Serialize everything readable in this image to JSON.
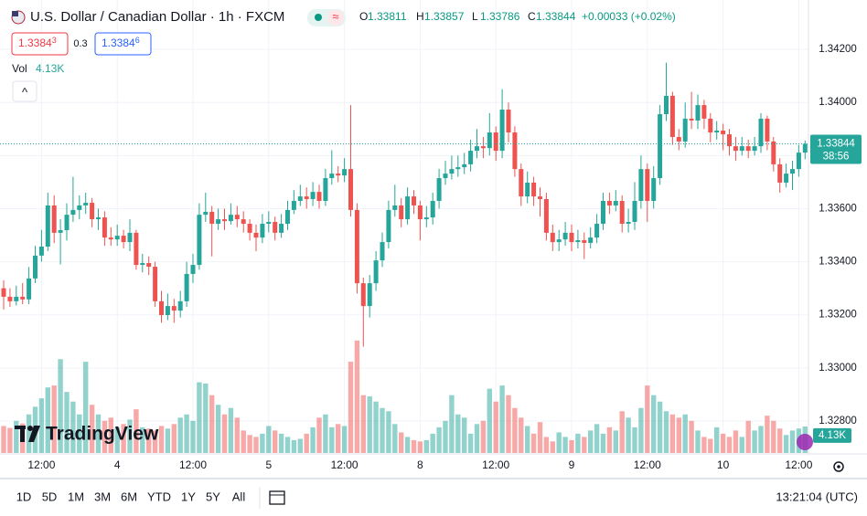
{
  "header": {
    "title": "U.S. Dollar / Canadian Dollar · 1h · FXCM",
    "status_icon": "≈",
    "ohlc": [
      {
        "label": "O",
        "value": "1.33811"
      },
      {
        "label": "H",
        "value": "1.33857"
      },
      {
        "label": "L",
        "value": "1.33786"
      },
      {
        "label": "C",
        "value": "1.33844"
      }
    ],
    "change": "+0.00033 (+0.02%)",
    "bid": {
      "main": "1.3384",
      "pip": "3"
    },
    "spread": "0.3",
    "ask": {
      "main": "1.3384",
      "pip": "6"
    },
    "vol_label": "Vol",
    "collapse": "^"
  },
  "chart_data": {
    "type": "candlestick",
    "watermark": "TradingView",
    "up_color": "#26a69a",
    "down_color": "#ef5350",
    "grid": true,
    "ylim": [
      1.32676,
      1.34386
    ],
    "yticks": [
      {
        "value": 1.328,
        "label": "1.32800"
      },
      {
        "value": 1.33,
        "label": "1.33000"
      },
      {
        "value": 1.332,
        "label": "1.33200"
      },
      {
        "value": 1.334,
        "label": "1.33400"
      },
      {
        "value": 1.336,
        "label": "1.33600"
      },
      {
        "value": 1.338,
        "label": "1.33800"
      },
      {
        "value": 1.34,
        "label": "1.34000"
      },
      {
        "value": 1.342,
        "label": "1.34200"
      }
    ],
    "x_ticks": [
      {
        "index": 6,
        "label": "12:00"
      },
      {
        "index": 18,
        "label": "4"
      },
      {
        "index": 30,
        "label": "12:00"
      },
      {
        "index": 42,
        "label": "5"
      },
      {
        "index": 54,
        "label": "12:00"
      },
      {
        "index": 66,
        "label": "8"
      },
      {
        "index": 78,
        "label": "12:00"
      },
      {
        "index": 90,
        "label": "9"
      },
      {
        "index": 102,
        "label": "12:00"
      },
      {
        "index": 114,
        "label": "10"
      },
      {
        "index": 126,
        "label": "12:00"
      }
    ],
    "open": [
      1.333,
      1.33268,
      1.33251,
      1.33268,
      1.33258,
      1.33337,
      1.33423,
      1.33457,
      1.33612,
      1.33509,
      1.33519,
      1.33577,
      1.33595,
      1.33612,
      1.33622,
      1.3356,
      1.33567,
      1.33491,
      1.33484,
      1.33498,
      1.33474,
      1.33509,
      1.33388,
      1.33395,
      1.33381,
      1.33251,
      1.33199,
      1.33233,
      1.33216,
      1.33251,
      1.33354,
      1.33388,
      1.33577,
      1.33588,
      1.33543,
      1.3356,
      1.33553,
      1.33577,
      1.3356,
      1.33543,
      1.33509,
      1.33491,
      1.33543,
      1.3355,
      1.33509,
      1.33543,
      1.33595,
      1.33629,
      1.33646,
      1.33636,
      1.33663,
      1.33629,
      1.33715,
      1.33732,
      1.33725,
      1.33749,
      1.33595,
      1.33319,
      1.33233,
      1.33319,
      1.33405,
      1.33474,
      1.33595,
      1.33612,
      1.3356,
      1.33646,
      1.33612,
      1.3356,
      1.33567,
      1.33629,
      1.33715,
      1.33732,
      1.33749,
      1.33756,
      1.33767,
      1.33818,
      1.33835,
      1.33828,
      1.33887,
      1.33818,
      1.33973,
      1.33887,
      1.33749,
      1.33646,
      1.33698,
      1.33646,
      1.33636,
      1.33509,
      1.33474,
      1.33484,
      1.33509,
      1.33474,
      1.33481,
      1.33471,
      1.33491,
      1.33543,
      1.33629,
      1.33612,
      1.33629,
      1.33543,
      1.3355,
      1.33629,
      1.33749,
      1.33629,
      1.33715,
      1.33956,
      1.34025,
      1.3387,
      1.33853,
      1.33939,
      1.33932,
      1.3399,
      1.33939,
      1.33887,
      1.33894,
      1.3388,
      1.33835,
      1.33818,
      1.33835,
      1.33818,
      1.33835,
      1.33939,
      1.33853,
      1.33767,
      1.33698,
      1.33732,
      1.33749,
      1.33811
    ],
    "high": [
      1.3333,
      1.333,
      1.3331,
      1.3332,
      1.3338,
      1.3346,
      1.3352,
      1.3366,
      1.3365,
      1.3356,
      1.3362,
      1.3372,
      1.3365,
      1.3366,
      1.3364,
      1.336,
      1.3359,
      1.3353,
      1.3354,
      1.3352,
      1.3356,
      1.3352,
      1.3343,
      1.3342,
      1.334,
      1.3329,
      1.3328,
      1.3326,
      1.3329,
      1.334,
      1.3343,
      1.3362,
      1.3366,
      1.3361,
      1.336,
      1.336,
      1.3362,
      1.3361,
      1.3359,
      1.3356,
      1.3354,
      1.3358,
      1.3359,
      1.3357,
      1.3358,
      1.3363,
      1.3367,
      1.3369,
      1.3368,
      1.337,
      1.3369,
      1.3375,
      1.3382,
      1.3376,
      1.3379,
      1.3399,
      1.3362,
      1.3334,
      1.3335,
      1.3344,
      1.3351,
      1.3363,
      1.3369,
      1.3364,
      1.3368,
      1.3367,
      1.3363,
      1.3361,
      1.3366,
      1.3375,
      1.3378,
      1.338,
      1.338,
      1.3381,
      1.3386,
      1.339,
      1.3387,
      1.3396,
      1.3391,
      1.3405,
      1.34,
      1.3391,
      1.3377,
      1.3374,
      1.3372,
      1.3368,
      1.3366,
      1.3354,
      1.3352,
      1.3355,
      1.3354,
      1.3352,
      1.3351,
      1.3353,
      1.3358,
      1.3366,
      1.3366,
      1.3367,
      1.3365,
      1.336,
      1.337,
      1.338,
      1.3377,
      1.3376,
      1.3399,
      1.3415,
      1.3404,
      1.339,
      1.34,
      1.3404,
      1.3403,
      1.3401,
      1.3396,
      1.3393,
      1.3392,
      1.339,
      1.3387,
      1.3387,
      1.3386,
      1.3387,
      1.3396,
      1.3395,
      1.3387,
      1.3379,
      1.3377,
      1.3378,
      1.3384,
      1.33857
    ],
    "low": [
      1.3322,
      1.3323,
      1.33235,
      1.3324,
      1.3324,
      1.3332,
      1.334,
      1.3344,
      1.3347,
      1.3339,
      1.3348,
      1.3355,
      1.3356,
      1.3358,
      1.3353,
      1.3352,
      1.3346,
      1.3346,
      1.3346,
      1.3345,
      1.3344,
      1.3337,
      1.3336,
      1.3335,
      1.3323,
      1.3317,
      1.3318,
      1.3317,
      1.3319,
      1.3323,
      1.3332,
      1.3337,
      1.3355,
      1.3342,
      1.3352,
      1.3352,
      1.3354,
      1.3353,
      1.3351,
      1.3348,
      1.3344,
      1.3347,
      1.3351,
      1.3348,
      1.3349,
      1.3352,
      1.3358,
      1.3361,
      1.336,
      1.3361,
      1.336,
      1.3361,
      1.3369,
      1.337,
      1.337,
      1.3357,
      1.3328,
      1.3308,
      1.3319,
      1.3329,
      1.3338,
      1.3345,
      1.3357,
      1.3353,
      1.3354,
      1.3358,
      1.3348,
      1.3353,
      1.3354,
      1.336,
      1.3369,
      1.3371,
      1.3372,
      1.3373,
      1.3374,
      1.3379,
      1.3379,
      1.338,
      1.3378,
      1.3379,
      1.3385,
      1.3372,
      1.3361,
      1.3362,
      1.3361,
      1.3357,
      1.3348,
      1.3344,
      1.3344,
      1.3346,
      1.3344,
      1.3345,
      1.3341,
      1.3345,
      1.3347,
      1.3352,
      1.3358,
      1.3359,
      1.3351,
      1.3351,
      1.3352,
      1.336,
      1.3355,
      1.336,
      1.3369,
      1.3393,
      1.3384,
      1.3382,
      1.3383,
      1.339,
      1.339,
      1.339,
      1.3385,
      1.3386,
      1.3382,
      1.338,
      1.3378,
      1.338,
      1.3379,
      1.338,
      1.3381,
      1.3382,
      1.3374,
      1.3366,
      1.3368,
      1.3367,
      1.3372,
      1.33786
    ],
    "close": [
      1.33268,
      1.33251,
      1.33268,
      1.33258,
      1.33337,
      1.33423,
      1.33457,
      1.33612,
      1.33509,
      1.33519,
      1.33577,
      1.33595,
      1.33612,
      1.33622,
      1.3356,
      1.33567,
      1.33491,
      1.33484,
      1.33498,
      1.33474,
      1.33509,
      1.33388,
      1.33395,
      1.33381,
      1.33251,
      1.33199,
      1.33233,
      1.33216,
      1.33251,
      1.33354,
      1.33388,
      1.33577,
      1.33588,
      1.33543,
      1.3356,
      1.33553,
      1.33577,
      1.3356,
      1.33543,
      1.33509,
      1.33491,
      1.33543,
      1.3355,
      1.33509,
      1.33543,
      1.33595,
      1.33629,
      1.33646,
      1.33636,
      1.33663,
      1.33629,
      1.33715,
      1.33732,
      1.33725,
      1.33749,
      1.33595,
      1.33319,
      1.33233,
      1.33319,
      1.33405,
      1.33474,
      1.33595,
      1.33612,
      1.3356,
      1.33646,
      1.33612,
      1.3356,
      1.33567,
      1.33629,
      1.33715,
      1.33732,
      1.33749,
      1.33756,
      1.33767,
      1.33818,
      1.33835,
      1.33828,
      1.33887,
      1.33818,
      1.33973,
      1.33887,
      1.33749,
      1.33646,
      1.33698,
      1.33646,
      1.33636,
      1.33509,
      1.33474,
      1.33484,
      1.33509,
      1.33474,
      1.33481,
      1.33471,
      1.33491,
      1.33543,
      1.33629,
      1.33612,
      1.33629,
      1.33543,
      1.3355,
      1.33629,
      1.33749,
      1.33629,
      1.33715,
      1.33956,
      1.34025,
      1.3387,
      1.33853,
      1.33939,
      1.33932,
      1.3399,
      1.33939,
      1.33887,
      1.33894,
      1.3388,
      1.33835,
      1.33818,
      1.33835,
      1.33818,
      1.33835,
      1.33939,
      1.33853,
      1.33767,
      1.33698,
      1.33732,
      1.33749,
      1.33811,
      1.33844
    ],
    "volume_ylim": [
      0,
      27000
    ],
    "volume": [
      4200,
      3900,
      5000,
      4600,
      6000,
      7200,
      8500,
      10200,
      10500,
      14600,
      9500,
      8000,
      6000,
      14200,
      7500,
      6000,
      5000,
      5500,
      4000,
      4500,
      5200,
      6800,
      4000,
      3800,
      3500,
      4200,
      3800,
      4500,
      5500,
      6000,
      5000,
      11000,
      10800,
      9000,
      7500,
      6000,
      7000,
      5500,
      3500,
      2800,
      2500,
      3000,
      4200,
      3500,
      3000,
      2500,
      2000,
      2200,
      3000,
      4000,
      5500,
      6000,
      4000,
      4500,
      4200,
      14200,
      17500,
      9000,
      8800,
      8000,
      7000,
      6500,
      4500,
      3200,
      2500,
      2000,
      1800,
      2000,
      3000,
      4000,
      5000,
      9000,
      6000,
      5500,
      3000,
      4500,
      5000,
      10000,
      8000,
      10500,
      9000,
      7000,
      5500,
      4200,
      3000,
      4800,
      2500,
      1800,
      3200,
      2500,
      2000,
      3000,
      2500,
      3500,
      4500,
      3000,
      4000,
      3500,
      6500,
      5500,
      4000,
      7000,
      10500,
      9000,
      8000,
      6500,
      6000,
      5500,
      6000,
      5000,
      3500,
      2500,
      2200,
      4000,
      3000,
      2500,
      3500,
      2500,
      5000,
      3500,
      4200,
      5800,
      5000,
      3800,
      2800,
      3500,
      3800,
      4130
    ],
    "volume_label": "4.13K",
    "countdown": "38:56"
  },
  "toolbar": {
    "periods": [
      "1D",
      "5D",
      "1M",
      "3M",
      "6M",
      "YTD",
      "1Y",
      "5Y",
      "All"
    ],
    "clock": "13:21:04 (UTC)"
  }
}
